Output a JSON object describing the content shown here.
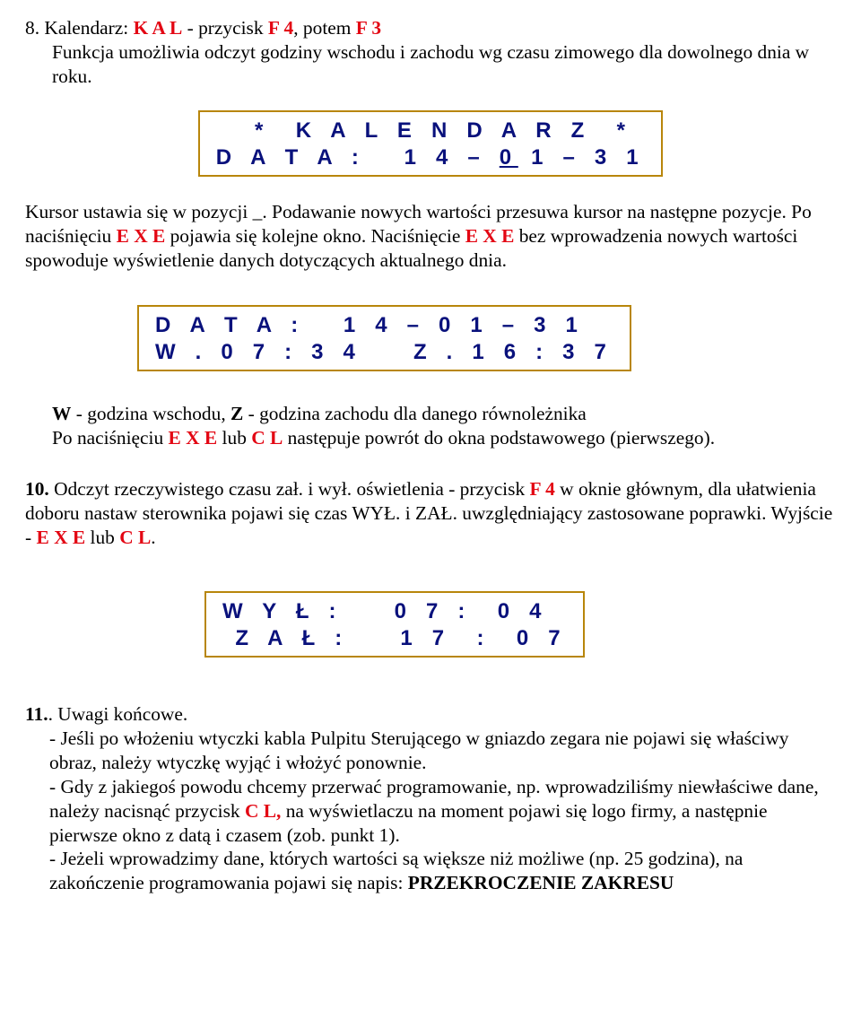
{
  "colors": {
    "text": "#000000",
    "red": "#e30613",
    "lcd_border": "#b8860b",
    "lcd_text": "#09117c",
    "background": "#ffffff"
  },
  "section8": {
    "heading_prefix": "8. Kalendarz: ",
    "kal": "K A L",
    "dash": " - przycisk ",
    "f4": "F 4",
    "potem": ", potem ",
    "f3": "F 3",
    "line2": "Funkcja umożliwia odczyt godziny wschodu i zachodu wg czasu zimowego dla dowolnego dnia w roku.",
    "lcd1_line1": "  *  K A L E N D A R Z  *",
    "lcd1_line2_a": "D A T A :   1 4 – ",
    "lcd1_line2_b": "0",
    "lcd1_line2_c": " 1 – 3 1",
    "p2a": "Kursor ustawia się w pozycji _. Podawanie nowych wartości przesuwa kursor na następne pozycje. Po naciśnięciu ",
    "exe1": "E X E",
    "p2b": " pojawia się kolejne okno. Naciśnięcie ",
    "exe2": "E X E",
    "p2c": " bez wprowadzenia nowych wartości spowoduje wyświetlenie danych dotyczących aktualnego dnia.",
    "lcd2_line1": "D A T A :   1 4 – 0 1 – 3 1",
    "lcd2_line2": "W . 0 7 : 3 4    Z . 1 6 : 3 7",
    "p3a_pref": "W",
    "p3a": " - godzina wschodu, ",
    "p3a_z": "Z",
    "p3a2": " - godzina zachodu dla danego równoleżnika",
    "p3b_a": "Po naciśnięciu ",
    "exe3": "E X E",
    "p3b_b": " lub ",
    "cl1": "C L",
    "p3b_c": " następuje powrót do okna podstawowego (pierwszego)."
  },
  "section10": {
    "heading": "10.",
    "h_a": " Odczyt rzeczywistego czasu zał. i wył. oświetlenia - przycisk  ",
    "f4": "F 4",
    "h_b": "  w oknie głównym, dla ułatwienia doboru nastaw sterownika pojawi się czas WYŁ. i ZAŁ. uwzględniający zastosowane poprawki. Wyjście - ",
    "exe": "E X E",
    "h_c": " lub ",
    "cl": "C L",
    "h_d": ".",
    "lcd3_line1": "W Y Ł :    0 7 :  0 4",
    "lcd3_line2": " Z A Ł :    1 7  :  0 7"
  },
  "section11": {
    "heading": "11.",
    "title": ". Uwagi końcowe.",
    "b1": "- Jeśli po włożeniu wtyczki kabla Pulpitu Sterującego w gniazdo zegara nie pojawi się właściwy obraz, należy wtyczkę wyjąć i włożyć ponownie.",
    "b2a": "- Gdy z jakiegoś powodu chcemy przerwać programowanie, np. wprowadziliśmy niewłaściwe dane, należy nacisnąć przycisk ",
    "cl": "C L,",
    "b2b": " na wyświetlaczu na moment pojawi się logo firmy, a następnie pierwsze okno z datą i czasem (zob. punkt 1).",
    "b3a": "- Jeżeli wprowadzimy dane, których wartości są większe niż możliwe (np. 25 godzina), na zakończenie programowania pojawi się napis: ",
    "b3b": "PRZEKROCZENIE ZAKRESU"
  }
}
